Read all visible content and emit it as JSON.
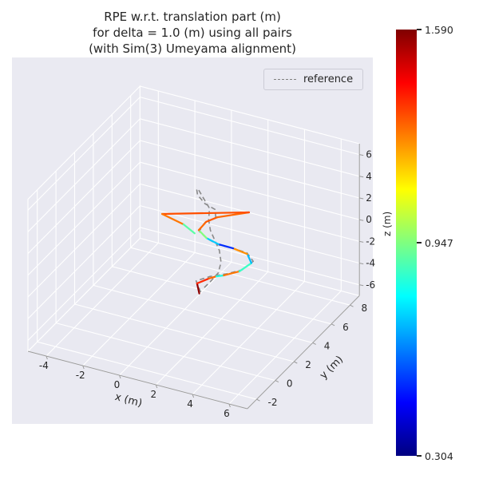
{
  "title": {
    "line1": "RPE w.r.t. translation part (m)",
    "line2": "for delta = 1.0 (m) using all pairs",
    "line3": "(with Sim(3) Umeyama alignment)"
  },
  "legend": {
    "items": [
      {
        "label": "reference",
        "style": "dashed",
        "color": "#808080"
      }
    ]
  },
  "colorbar": {
    "colormap": "jet",
    "max": "1.590",
    "mid": "0.947",
    "min": "0.304"
  },
  "colors": {
    "figure_facecolor": "#ffffff",
    "axes_facecolor": "#eaeaf2",
    "grid_color": "#ffffff",
    "tick_label_color": "#262626",
    "reference_color": "#8a8a8a",
    "spine_color": "#9a9a9a"
  },
  "chart_data": {
    "type": "line",
    "subtype": "trajectory_3d",
    "title": "RPE w.r.t. translation part (m) for delta = 1.0 (m) using all pairs (with Sim(3) Umeyama alignment)",
    "xlabel": "x (m)",
    "ylabel": "y (m)",
    "zlabel": "z (m)",
    "xlim": [
      -5,
      7
    ],
    "ylim": [
      -3,
      9
    ],
    "zlim": [
      -7,
      7
    ],
    "xticks": [
      -4,
      -2,
      0,
      2,
      4,
      6
    ],
    "yticks": [
      -2,
      0,
      2,
      4,
      6,
      8
    ],
    "zticks": [
      -6,
      -4,
      -2,
      0,
      2,
      4,
      6
    ],
    "grid": true,
    "legend_position": "upper right",
    "colormap": {
      "name": "jet",
      "vmin": 0.304,
      "vmax": 1.59,
      "vmid": 0.947
    },
    "series": [
      {
        "name": "reference",
        "style": "dashed",
        "color": "#8a8a8a",
        "points": [
          [
            2.2,
            1.4,
            -2.2
          ],
          [
            1.8,
            1.7,
            -1.6
          ],
          [
            2.3,
            2.2,
            -1.4
          ],
          [
            3.0,
            2.6,
            -1.2
          ],
          [
            3.6,
            3.1,
            -1.0
          ],
          [
            3.9,
            3.7,
            -0.6
          ],
          [
            3.4,
            4.0,
            -0.3
          ],
          [
            2.7,
            3.8,
            0.0
          ],
          [
            2.1,
            3.5,
            0.3
          ],
          [
            1.6,
            3.3,
            0.8
          ],
          [
            1.2,
            3.2,
            1.4
          ],
          [
            1.3,
            3.6,
            1.9
          ],
          [
            1.7,
            4.0,
            2.2
          ],
          [
            1.5,
            4.3,
            2.6
          ],
          [
            1.0,
            4.2,
            3.0
          ],
          [
            0.5,
            4.4,
            3.4
          ],
          [
            0.2,
            4.9,
            3.3
          ],
          [
            0.0,
            5.4,
            2.9
          ],
          [
            0.4,
            5.2,
            2.4
          ],
          [
            0.9,
            4.9,
            1.9
          ],
          [
            1.1,
            4.4,
            1.4
          ],
          [
            1.4,
            4.0,
            0.9
          ],
          [
            1.8,
            3.7,
            0.4
          ],
          [
            2.2,
            3.4,
            -0.1
          ],
          [
            2.5,
            3.0,
            -0.7
          ],
          [
            2.6,
            2.5,
            -1.2
          ],
          [
            2.4,
            2.0,
            -1.7
          ],
          [
            2.2,
            1.6,
            -2.1
          ]
        ]
      },
      {
        "name": "estimate_colored_by_rpe",
        "style": "solid",
        "colored_by": "rpe_translation_m",
        "points": [
          [
            2.15,
            1.35,
            -2.3
          ],
          [
            1.9,
            1.6,
            -1.7
          ],
          [
            2.3,
            2.1,
            -1.5
          ],
          [
            2.6,
            2.3,
            -1.35
          ],
          [
            2.9,
            2.5,
            -1.3
          ],
          [
            3.5,
            3.0,
            -1.1
          ],
          [
            3.85,
            3.6,
            -0.7
          ],
          [
            3.45,
            3.95,
            -0.35
          ],
          [
            2.75,
            3.8,
            0.0
          ],
          [
            2.1,
            3.5,
            0.35
          ],
          [
            1.55,
            3.3,
            0.85
          ],
          [
            1.15,
            3.25,
            1.45
          ],
          [
            1.35,
            3.65,
            1.95
          ],
          [
            1.75,
            4.05,
            2.2
          ],
          [
            2.92,
            5.17,
            2.2
          ],
          [
            -0.88,
            3.3,
            2.0
          ],
          [
            0.31,
            3.26,
            1.6
          ],
          [
            0.9,
            3.3,
            1.0
          ]
        ],
        "segment_errors": [
          1.57,
          1.38,
          1.3,
          0.82,
          1.28,
          0.86,
          0.7,
          1.25,
          0.52,
          0.72,
          0.95,
          1.3,
          1.32,
          1.3,
          1.33,
          1.28,
          0.9
        ]
      }
    ]
  }
}
